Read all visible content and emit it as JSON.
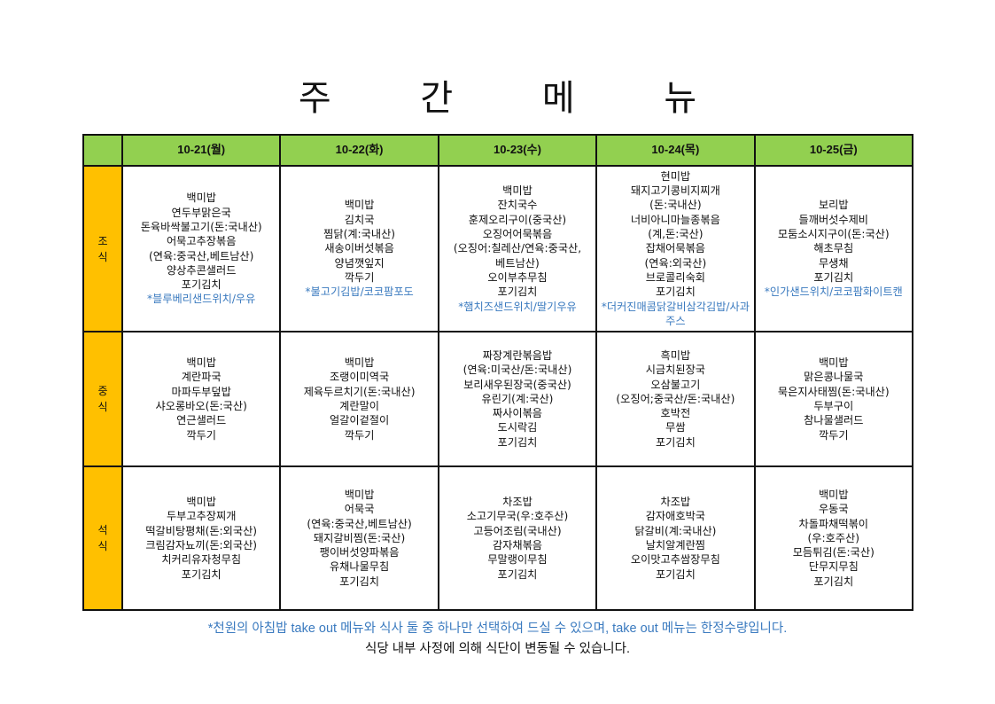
{
  "title": "주 간 메 뉴",
  "days": [
    "10-21(월)",
    "10-22(화)",
    "10-23(수)",
    "10-24(목)",
    "10-25(금)"
  ],
  "meals": [
    {
      "label": "조\n식",
      "cells": [
        {
          "items": [
            "백미밥",
            "연두부맑은국",
            "돈육바싹불고기(돈:국내산)",
            "어묵고추장볶음",
            "(연육:중국산,베트남산)",
            "양상추콘샐러드",
            "포기김치"
          ],
          "takeout": "*블루베리샌드위치/우유"
        },
        {
          "items": [
            "백미밥",
            "김치국",
            "찜닭(계:국내산)",
            "새송이버섯볶음",
            "양념깻잎지",
            "깍두기"
          ],
          "takeout": "*불고기김밥/코코팜포도"
        },
        {
          "items": [
            "백미밥",
            "잔치국수",
            "훈제오리구이(중국산)",
            "오징어어묵볶음",
            "(오징어:칠레산/연육:중국산,",
            "베트남산)",
            "오이부추무침",
            "포기김치"
          ],
          "takeout": "*햄치즈샌드위치/딸기우유"
        },
        {
          "items": [
            "현미밥",
            "돼지고기콩비지찌개",
            "(돈:국내산)",
            "너비아니마늘종볶음",
            "(계,돈:국산)",
            "잡채어묵볶음",
            "(연육:외국산)",
            "브로콜리숙회",
            "포기김치"
          ],
          "takeout": "*더커진매콤닭갈비삼각김밥/사과주스"
        },
        {
          "items": [
            "보리밥",
            "들깨버섯수제비",
            "모둠소시지구이(돈:국산)",
            "해초무침",
            "무생채",
            "포기김치"
          ],
          "takeout": "*인가샌드위치/코코팜화이트캔"
        }
      ]
    },
    {
      "label": "중\n식",
      "cells": [
        {
          "items": [
            "백미밥",
            "계란파국",
            "마파두부덮밥",
            "샤오롱바오(돈:국산)",
            "연근샐러드",
            "깍두기"
          ]
        },
        {
          "items": [
            "백미밥",
            "조랭이미역국",
            "제육두르치기(돈:국내산)",
            "계란말이",
            "얼갈이겉절이",
            "깍두기"
          ]
        },
        {
          "items": [
            "짜장계란볶음밥",
            "(연육:미국산/돈:국내산)",
            "보리새우된장국(중국산)",
            "유린기(계:국산)",
            "짜사이볶음",
            "도시락김",
            "포기김치"
          ]
        },
        {
          "items": [
            "흑미밥",
            "시금치된장국",
            "오삼불고기",
            "(오징어;중국산/돈:국내산)",
            "호박전",
            "무쌈",
            "포기김치"
          ]
        },
        {
          "items": [
            "백미밥",
            "맑은콩나물국",
            "묵은지사태찜(돈:국내산)",
            "두부구이",
            "참나물샐러드",
            "깍두기"
          ]
        }
      ]
    },
    {
      "label": "석\n식",
      "cells": [
        {
          "items": [
            "백미밥",
            "두부고추장찌개",
            "떡갈비탕평채(돈:외국산)",
            "크림감자뇨끼(돈:외국산)",
            "치커리유자청무침",
            "포기김치"
          ]
        },
        {
          "items": [
            "백미밥",
            "어묵국",
            "(연육:중국산,베트남산)",
            "돼지갈비찜(돈:국산)",
            "팽이버섯양파볶음",
            "유채나물무침",
            "포기김치"
          ]
        },
        {
          "items": [
            "차조밥",
            "소고기무국(우:호주산)",
            "고등어조림(국내산)",
            "감자채볶음",
            "무말랭이무침",
            "포기김치"
          ]
        },
        {
          "items": [
            "차조밥",
            "감자애호박국",
            "닭갈비(계:국내산)",
            "날치알계란찜",
            "오이맛고추쌈장무침",
            "포기김치"
          ]
        },
        {
          "items": [
            "백미밥",
            "우동국",
            "차돌파채떡볶이",
            "(우:호주산)",
            "모듬튀김(돈:국산)",
            "단무지무침",
            "포기김치"
          ]
        }
      ]
    }
  ],
  "notes": {
    "takeout_note": "*천원의 아침밥 take out 메뉴와 식사 둘 중 하나만 선택하여 드실 수 있으며, take out 메뉴는 한정수량입니다.",
    "change_note": "식당 내부 사정에 의해 식단이 변동될 수 있습니다."
  },
  "colors": {
    "header_bg": "#92d050",
    "meal_label_bg": "#ffc000",
    "takeout_text": "#3a7abf"
  }
}
